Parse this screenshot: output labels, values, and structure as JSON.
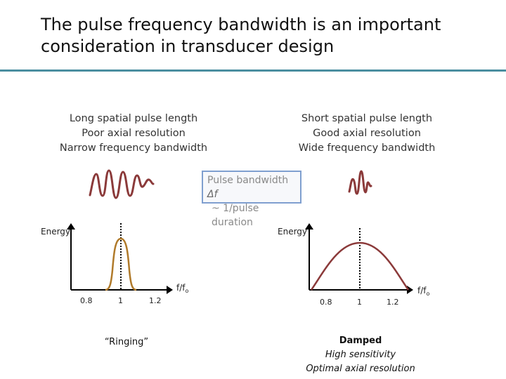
{
  "title": "The pulse frequency bandwidth is an important consideration in transducer design",
  "left": {
    "lines": [
      "Long spatial pulse length",
      "Poor axial resolution",
      "Narrow frequency bandwidth"
    ],
    "caption": "“Ringing”"
  },
  "right": {
    "lines": [
      "Short spatial pulse length",
      "Good axial resolution",
      "Wide frequency bandwidth"
    ],
    "caption_bold": "Damped",
    "caption_lines": [
      "High sensitivity",
      "Optimal axial resolution"
    ]
  },
  "callout": {
    "line1": "Pulse bandwidth",
    "delta": "Δf",
    "line2": "~ 1/pulse duration"
  },
  "axis": {
    "ylabel": "Energy",
    "xlabel_base": "f/f",
    "xlabel_sub": "o",
    "ticks": [
      "0.8",
      "1",
      "1.2"
    ]
  },
  "colors": {
    "accent_rule": "#4a8ea0",
    "wave": "#8b3a3a",
    "left_curve": "#b07a2a",
    "right_curve": "#8b3a3a",
    "callout_border": "#7f9fcf"
  }
}
